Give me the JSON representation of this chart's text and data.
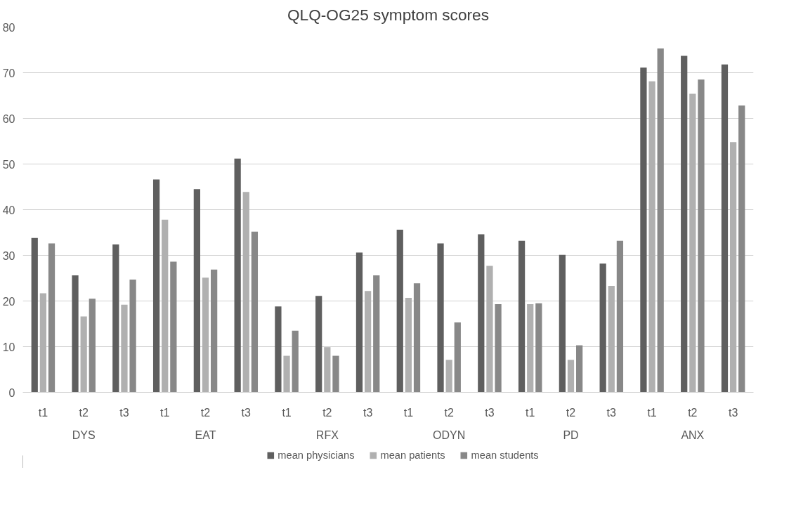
{
  "chart_data": {
    "type": "bar",
    "title": "QLQ-OG25 symptom scores",
    "categories": [
      "t1",
      "t2",
      "t3",
      "t1",
      "t2",
      "t3",
      "t1",
      "t2",
      "t3",
      "t1",
      "t2",
      "t3",
      "t1",
      "t2",
      "t3",
      "t1",
      "t2",
      "t3"
    ],
    "annotations": [
      "DYS",
      "EAT",
      "RFX",
      "ODYN",
      "PD",
      "ANX"
    ],
    "series": [
      {
        "name": "mean physicians",
        "color": "#5f5f5f",
        "values": [
          33.8,
          25.6,
          32.4,
          46.6,
          44.5,
          51.2,
          18.8,
          21.1,
          30.6,
          35.6,
          32.6,
          34.6,
          33.2,
          30.1,
          28.2,
          71.1,
          73.7,
          71.8
        ]
      },
      {
        "name": "mean patients",
        "color": "#b0b0b0",
        "values": [
          21.7,
          16.6,
          19.2,
          37.8,
          25.1,
          43.9,
          8.0,
          9.9,
          22.2,
          20.7,
          7.1,
          27.7,
          19.3,
          7.1,
          23.3,
          68.1,
          65.4,
          54.8
        ]
      },
      {
        "name": "mean students",
        "color": "#888888",
        "values": [
          32.6,
          20.5,
          24.7,
          28.6,
          26.9,
          35.2,
          13.5,
          8.0,
          25.6,
          23.9,
          15.3,
          19.3,
          19.5,
          10.3,
          33.2,
          75.3,
          68.5,
          62.8
        ]
      }
    ],
    "ylim": [
      0,
      80
    ],
    "yticks": [
      0,
      10,
      20,
      30,
      40,
      50,
      60,
      70,
      80
    ],
    "grid": "y",
    "legend": "bottom"
  }
}
